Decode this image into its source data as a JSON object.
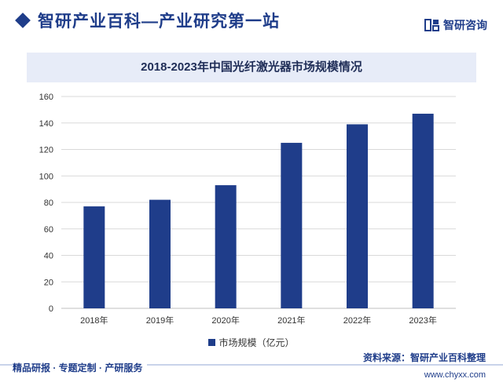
{
  "header": {
    "site_title": "智研产业百科—产业研究第一站",
    "brand_name": "智研咨询",
    "brand_icon": "zhiyan-logo-icon"
  },
  "chart_data": {
    "type": "bar",
    "title": "2018-2023年中国光纤激光器市场规模情况",
    "categories": [
      "2018年",
      "2019年",
      "2020年",
      "2021年",
      "2022年",
      "2023年"
    ],
    "series": [
      {
        "name": "市场规模（亿元）",
        "values": [
          77,
          82,
          93,
          125,
          139,
          147
        ]
      }
    ],
    "yticks": [
      0,
      20,
      40,
      60,
      80,
      100,
      120,
      140,
      160
    ],
    "ylim": [
      0,
      160
    ],
    "grid": true,
    "legend_position": "bottom",
    "bar_color": "#1f3d8a",
    "grid_color": "#d9d9d9"
  },
  "footer": {
    "source": "资料来源：智研产业百科整理",
    "tagline": "精品研报 · 专题定制 · 产研服务",
    "url": "www.chyxx.com"
  }
}
